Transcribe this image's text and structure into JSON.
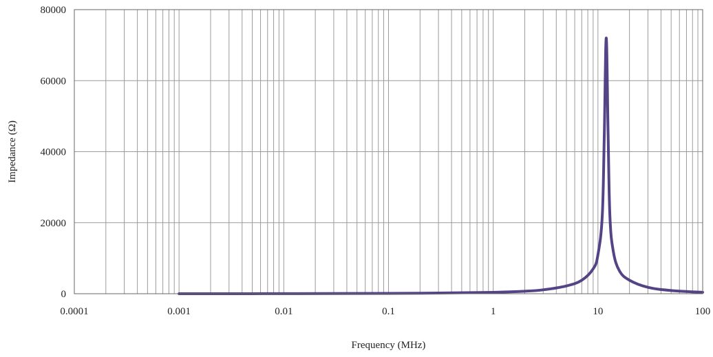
{
  "chart_data": {
    "type": "line",
    "xlabel": "Frequency (MHz)",
    "ylabel": "Impedance (Ω)",
    "x_scale": "log",
    "xlim": [
      0.0001,
      100
    ],
    "ylim": [
      0,
      80000
    ],
    "x_ticks": [
      0.0001,
      0.001,
      0.01,
      0.1,
      1,
      10,
      100
    ],
    "x_tick_labels": [
      "0.0001",
      "0.001",
      "0.01",
      "0.1",
      "1",
      "10",
      "100"
    ],
    "y_ticks": [
      0,
      20000,
      40000,
      60000,
      80000
    ],
    "y_tick_labels": [
      "0",
      "20000",
      "40000",
      "60000",
      "80000"
    ],
    "grid": true,
    "series": [
      {
        "color": "#4b3a7f",
        "x": [
          0.001,
          0.01,
          0.1,
          0.3,
          1,
          2,
          3,
          5,
          7,
          9,
          10,
          11,
          11.5,
          12,
          12.5,
          13,
          14,
          16,
          20,
          30,
          50,
          100
        ],
        "y": [
          0,
          20,
          100,
          200,
          400,
          700,
          1100,
          2200,
          3800,
          7000,
          11000,
          22000,
          45000,
          72000,
          45000,
          22000,
          12000,
          6500,
          3800,
          1800,
          900,
          400
        ]
      }
    ]
  }
}
